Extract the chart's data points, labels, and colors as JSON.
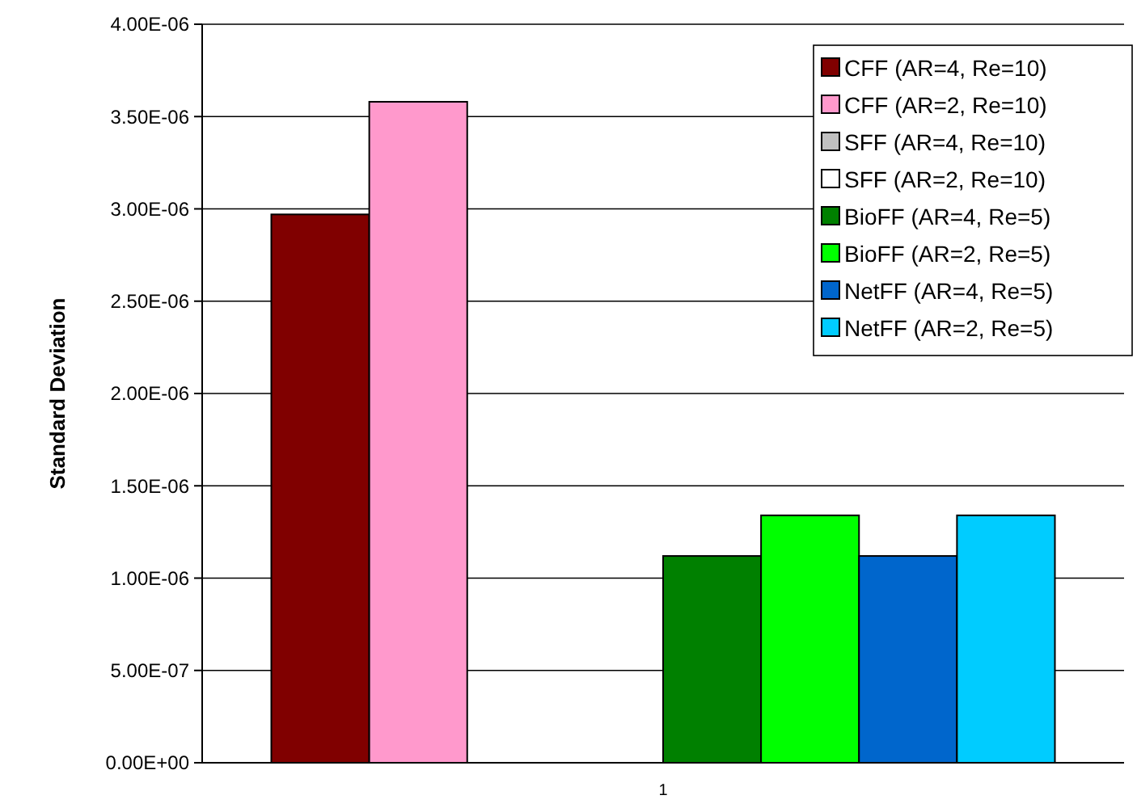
{
  "chart_data": {
    "type": "bar",
    "ylabel": "Standard Deviation",
    "categories": [
      "1"
    ],
    "series": [
      {
        "name": "CFF (AR=4, Re=10)",
        "color": "#800000",
        "values": [
          2.97e-06
        ]
      },
      {
        "name": "CFF (AR=2, Re=10)",
        "color": "#ff99cc",
        "values": [
          3.58e-06
        ]
      },
      {
        "name": "SFF (AR=4, Re=10)",
        "color": "#c0c0c0",
        "values": [
          0
        ]
      },
      {
        "name": "SFF (AR=2, Re=10)",
        "color": "#ffffff",
        "values": [
          0
        ]
      },
      {
        "name": "BioFF (AR=4, Re=5)",
        "color": "#008000",
        "values": [
          1.12e-06
        ]
      },
      {
        "name": "BioFF (AR=2, Re=5)",
        "color": "#00ff00",
        "values": [
          1.34e-06
        ]
      },
      {
        "name": "NetFF (AR=4, Re=5)",
        "color": "#0066cc",
        "values": [
          1.12e-06
        ]
      },
      {
        "name": "NetFF (AR=2, Re=5)",
        "color": "#00ccff",
        "values": [
          1.34e-06
        ]
      }
    ],
    "ylim": [
      0,
      4e-06
    ],
    "yticks": [
      {
        "value": 0,
        "label": "0.00E+00"
      },
      {
        "value": 5e-07,
        "label": "5.00E-07"
      },
      {
        "value": 1e-06,
        "label": "1.00E-06"
      },
      {
        "value": 1.5e-06,
        "label": "1.50E-06"
      },
      {
        "value": 2e-06,
        "label": "2.00E-06"
      },
      {
        "value": 2.5e-06,
        "label": "2.50E-06"
      },
      {
        "value": 3e-06,
        "label": "3.00E-06"
      },
      {
        "value": 3.5e-06,
        "label": "3.50E-06"
      },
      {
        "value": 4e-06,
        "label": "4.00E-06"
      }
    ],
    "grid": "y",
    "legend": "top right"
  }
}
